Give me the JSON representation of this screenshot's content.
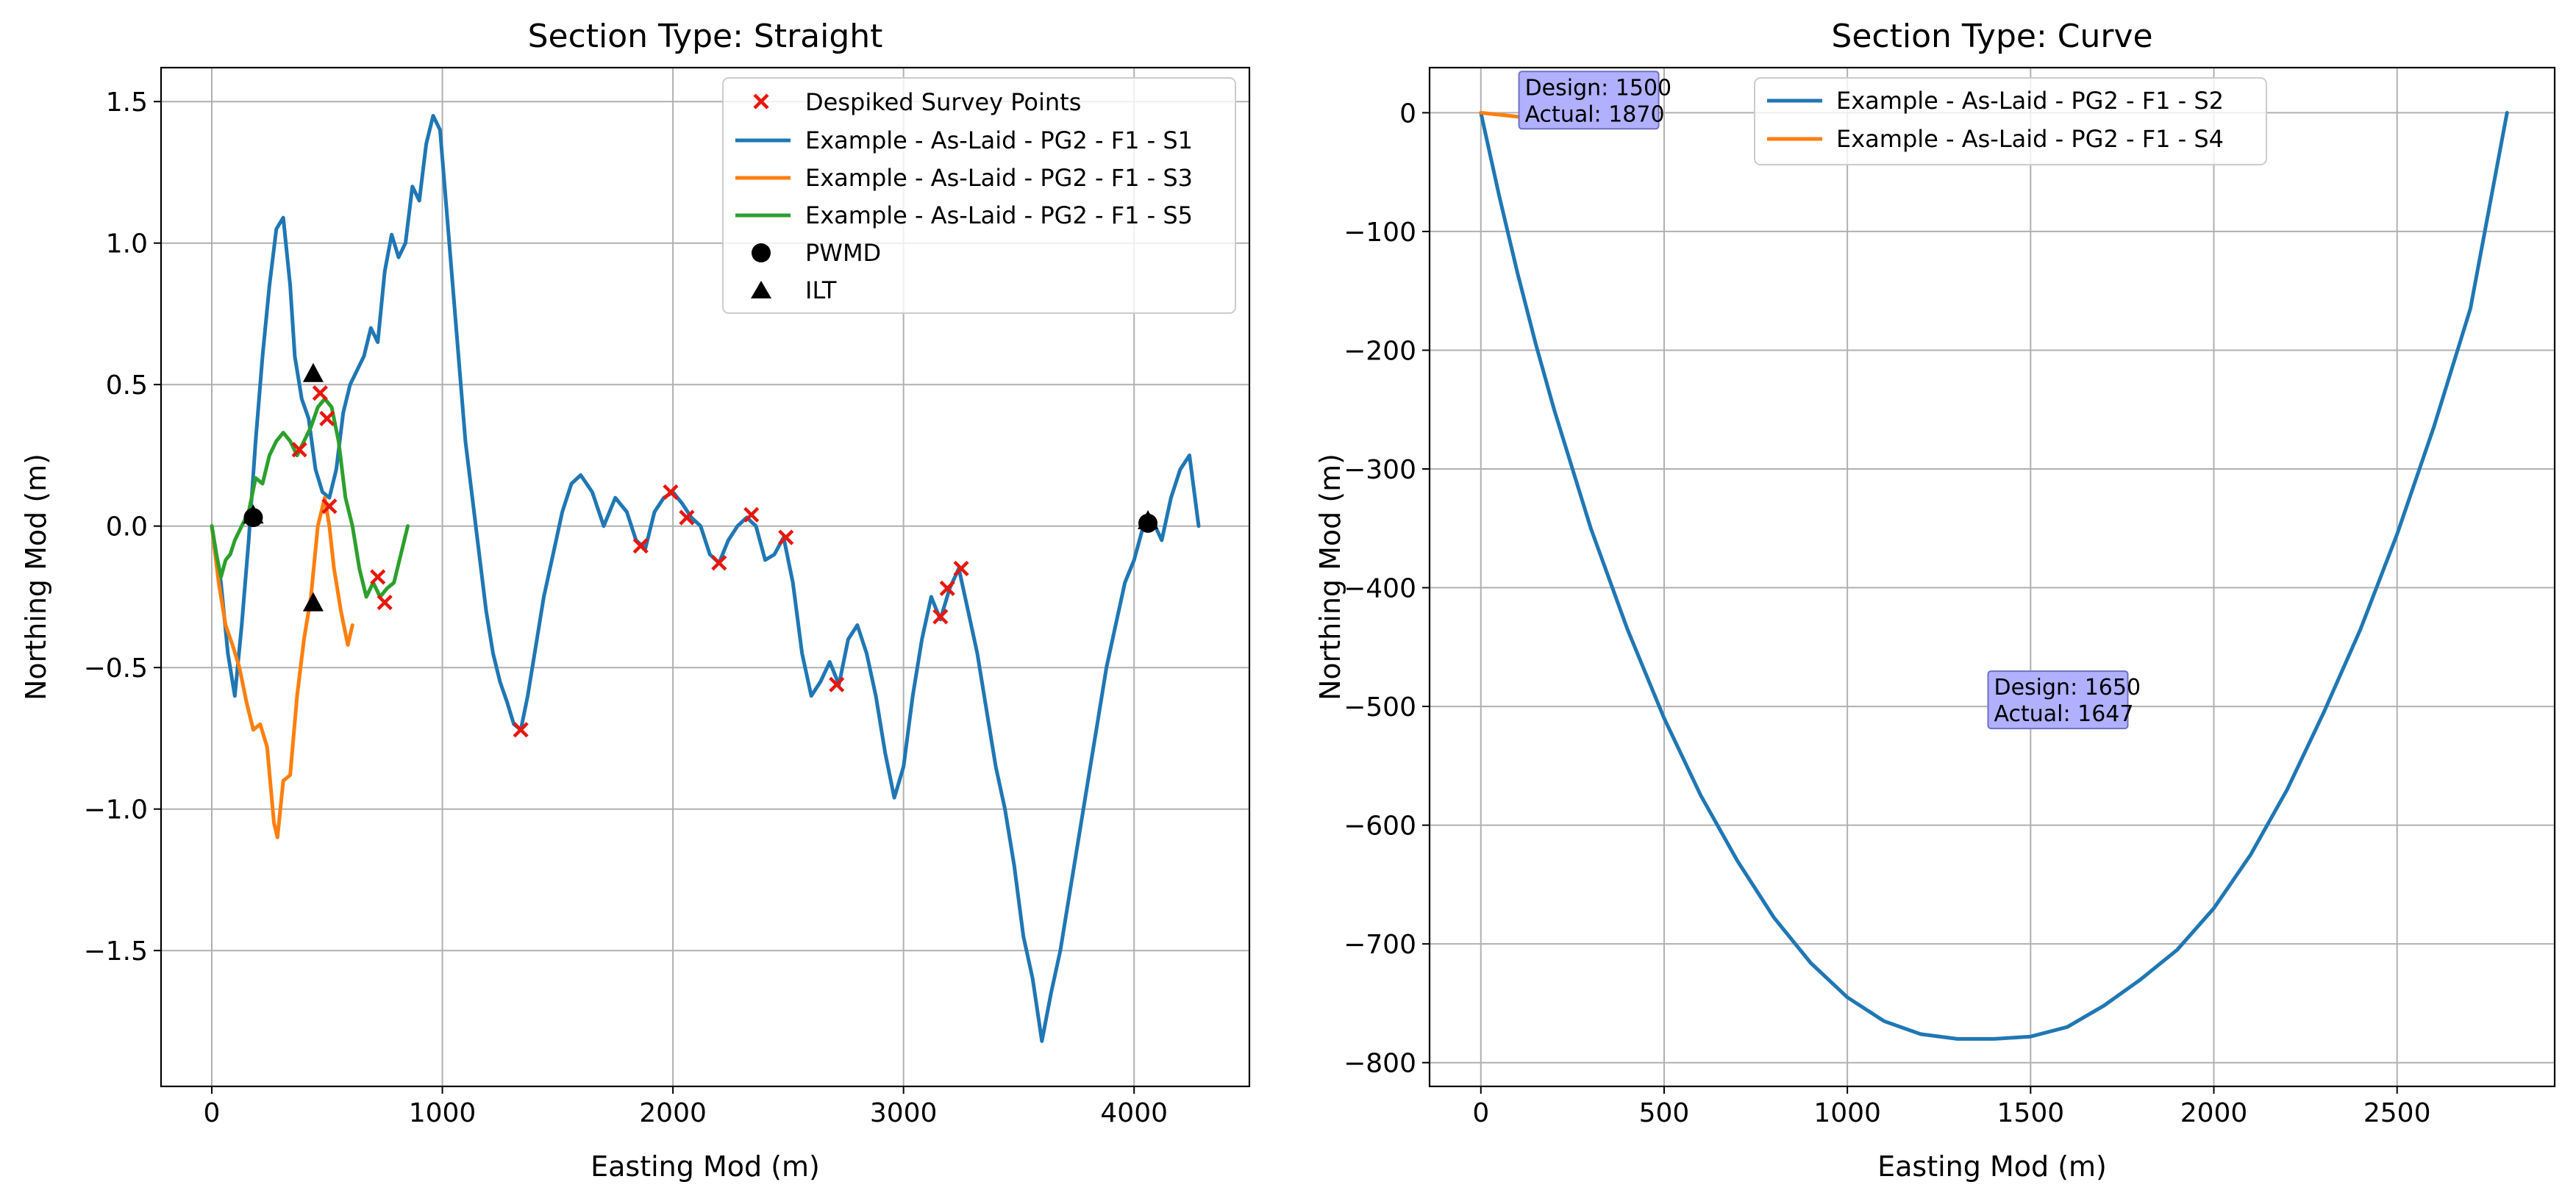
{
  "chart_data": [
    {
      "type": "line",
      "title": "Section Type: Straight",
      "xlabel": "Easting Mod (m)",
      "ylabel": "Northing Mod (m)",
      "xlim": [
        -220,
        4500
      ],
      "ylim": [
        -1.98,
        1.62
      ],
      "xticks": [
        0,
        1000,
        2000,
        3000,
        4000
      ],
      "xtick_labels": [
        "0",
        "1000",
        "2000",
        "3000",
        "4000"
      ],
      "yticks": [
        1.5,
        1.0,
        0.5,
        0.0,
        -0.5,
        -1.0,
        -1.5
      ],
      "ytick_labels": [
        "1.5",
        "1.0",
        "0.5",
        "0.0",
        "−0.5",
        "−1.0",
        "−1.5"
      ],
      "grid": true,
      "legend_position": "top-right",
      "legend": [
        {
          "label": "Despiked Survey Points",
          "kind": "x-marker",
          "color": "#e8170b"
        },
        {
          "label": "Example - As-Laid - PG2 - F1 - S1",
          "kind": "line",
          "color": "#1f77b4"
        },
        {
          "label": "Example - As-Laid - PG2 - F1 - S3",
          "kind": "line",
          "color": "#ff7f0e"
        },
        {
          "label": "Example - As-Laid - PG2 - F1 - S5",
          "kind": "line",
          "color": "#2ca02c"
        },
        {
          "label": "PWMD",
          "kind": "circle-marker",
          "color": "#000000"
        },
        {
          "label": "ILT",
          "kind": "triangle-marker",
          "color": "#000000"
        }
      ],
      "series": [
        {
          "name": "Example - As-Laid - PG2 - F1 - S1",
          "color": "#1f77b4",
          "x": [
            0,
            40,
            70,
            100,
            130,
            160,
            190,
            220,
            250,
            280,
            310,
            340,
            360,
            390,
            420,
            450,
            480,
            510,
            540,
            570,
            600,
            630,
            660,
            690,
            720,
            750,
            780,
            810,
            840,
            870,
            900,
            930,
            960,
            990,
            1010,
            1040,
            1070,
            1100,
            1130,
            1160,
            1190,
            1220,
            1250,
            1280,
            1310,
            1340,
            1370,
            1400,
            1440,
            1480,
            1520,
            1560,
            1600,
            1650,
            1700,
            1750,
            1800,
            1840,
            1880,
            1920,
            1960,
            2000,
            2040,
            2080,
            2120,
            2160,
            2200,
            2240,
            2280,
            2320,
            2360,
            2400,
            2440,
            2480,
            2520,
            2560,
            2600,
            2640,
            2680,
            2720,
            2760,
            2800,
            2840,
            2880,
            2920,
            2960,
            3000,
            3040,
            3080,
            3120,
            3160,
            3200,
            3240,
            3280,
            3320,
            3360,
            3400,
            3440,
            3480,
            3520,
            3560,
            3600,
            3640,
            3680,
            3720,
            3760,
            3800,
            3840,
            3880,
            3920,
            3960,
            4000,
            4040,
            4080,
            4120,
            4160,
            4200,
            4240,
            4280
          ],
          "y": [
            0.0,
            -0.2,
            -0.45,
            -0.6,
            -0.35,
            -0.05,
            0.3,
            0.6,
            0.85,
            1.05,
            1.09,
            0.85,
            0.6,
            0.45,
            0.38,
            0.2,
            0.12,
            0.1,
            0.2,
            0.4,
            0.5,
            0.55,
            0.6,
            0.7,
            0.65,
            0.9,
            1.03,
            0.95,
            1.0,
            1.2,
            1.15,
            1.35,
            1.45,
            1.4,
            1.2,
            0.9,
            0.6,
            0.3,
            0.1,
            -0.1,
            -0.3,
            -0.45,
            -0.55,
            -0.62,
            -0.7,
            -0.72,
            -0.6,
            -0.45,
            -0.25,
            -0.1,
            0.05,
            0.15,
            0.18,
            0.12,
            0.0,
            0.1,
            0.05,
            -0.05,
            -0.08,
            0.05,
            0.1,
            0.12,
            0.08,
            0.03,
            0.0,
            -0.1,
            -0.13,
            -0.05,
            0.0,
            0.03,
            0.0,
            -0.12,
            -0.1,
            -0.04,
            -0.2,
            -0.45,
            -0.6,
            -0.55,
            -0.48,
            -0.56,
            -0.4,
            -0.35,
            -0.45,
            -0.6,
            -0.8,
            -0.96,
            -0.85,
            -0.6,
            -0.4,
            -0.25,
            -0.33,
            -0.22,
            -0.15,
            -0.3,
            -0.45,
            -0.65,
            -0.85,
            -1.0,
            -1.2,
            -1.45,
            -1.6,
            -1.82,
            -1.65,
            -1.5,
            -1.3,
            -1.1,
            -0.9,
            -0.7,
            -0.5,
            -0.35,
            -0.2,
            -0.12,
            0.0,
            0.02,
            -0.05,
            0.1,
            0.2,
            0.25,
            0.0
          ]
        },
        {
          "name": "Example - As-Laid - PG2 - F1 - S3",
          "color": "#ff7f0e",
          "x": [
            0,
            30,
            60,
            90,
            120,
            150,
            180,
            210,
            240,
            270,
            285,
            310,
            340,
            370,
            400,
            430,
            460,
            490,
            510,
            530,
            560,
            590,
            610
          ],
          "y": [
            0.0,
            -0.2,
            -0.35,
            -0.42,
            -0.5,
            -0.62,
            -0.72,
            -0.7,
            -0.78,
            -1.05,
            -1.1,
            -0.9,
            -0.88,
            -0.6,
            -0.4,
            -0.25,
            0.0,
            0.1,
            0.0,
            -0.15,
            -0.3,
            -0.42,
            -0.35
          ]
        },
        {
          "name": "Example - As-Laid - PG2 - F1 - S5",
          "color": "#2ca02c",
          "x": [
            0,
            20,
            40,
            60,
            80,
            100,
            130,
            160,
            190,
            220,
            250,
            280,
            310,
            340,
            370,
            400,
            430,
            460,
            490,
            520,
            550,
            580,
            610,
            640,
            670,
            700,
            730,
            760,
            790,
            820,
            850
          ],
          "y": [
            0.0,
            -0.1,
            -0.18,
            -0.12,
            -0.1,
            -0.05,
            0.0,
            0.05,
            0.17,
            0.15,
            0.25,
            0.3,
            0.33,
            0.3,
            0.25,
            0.3,
            0.35,
            0.42,
            0.45,
            0.42,
            0.3,
            0.1,
            0.0,
            -0.15,
            -0.25,
            -0.2,
            -0.25,
            -0.22,
            -0.2,
            -0.1,
            0.0
          ]
        }
      ],
      "despiked_points": {
        "x": [
          380,
          470,
          500,
          510,
          720,
          750,
          1340,
          1860,
          1990,
          2060,
          2200,
          2340,
          2490,
          2710,
          3160,
          3190,
          3250
        ],
        "y": [
          0.27,
          0.47,
          0.38,
          0.07,
          -0.18,
          -0.27,
          -0.72,
          -0.07,
          0.12,
          0.03,
          -0.13,
          0.04,
          -0.04,
          -0.56,
          -0.32,
          -0.22,
          -0.15
        ]
      },
      "pwmd_points": {
        "x": [
          180,
          4060
        ],
        "y": [
          0.03,
          0.01
        ]
      },
      "ilt_points": {
        "x": [
          440,
          440,
          180,
          4060
        ],
        "y": [
          0.54,
          -0.27,
          0.04,
          0.02
        ]
      }
    },
    {
      "type": "line",
      "title": "Section Type: Curve",
      "xlabel": "Easting Mod (m)",
      "ylabel": "Northing Mod (m)",
      "xlim": [
        -140,
        2930
      ],
      "ylim": [
        -820,
        38
      ],
      "xticks": [
        0,
        500,
        1000,
        1500,
        2000,
        2500
      ],
      "xtick_labels": [
        "0",
        "500",
        "1000",
        "1500",
        "2000",
        "2500"
      ],
      "yticks": [
        0,
        -100,
        -200,
        -300,
        -400,
        -500,
        -600,
        -700,
        -800
      ],
      "ytick_labels": [
        "0",
        "−100",
        "−200",
        "−300",
        "−400",
        "−500",
        "−600",
        "−700",
        "−800"
      ],
      "grid": true,
      "legend_position": "top-center",
      "legend": [
        {
          "label": "Example - As-Laid - PG2 - F1 - S2",
          "kind": "line",
          "color": "#1f77b4"
        },
        {
          "label": "Example - As-Laid - PG2 - F1 - S4",
          "kind": "line",
          "color": "#ff7f0e"
        }
      ],
      "series": [
        {
          "name": "Example - As-Laid - PG2 - F1 - S2",
          "color": "#1f77b4",
          "x": [
            0,
            50,
            100,
            150,
            200,
            300,
            400,
            500,
            600,
            700,
            800,
            900,
            1000,
            1100,
            1200,
            1300,
            1400,
            1500,
            1600,
            1700,
            1800,
            1900,
            2000,
            2100,
            2200,
            2300,
            2400,
            2500,
            2600,
            2700,
            2800
          ],
          "y": [
            0,
            -70,
            -135,
            -195,
            -250,
            -350,
            -435,
            -510,
            -575,
            -630,
            -678,
            -716,
            -745,
            -765,
            -776,
            -780,
            -780,
            -778,
            -770,
            -752,
            -730,
            -705,
            -670,
            -625,
            -570,
            -505,
            -435,
            -355,
            -265,
            -165,
            0
          ]
        },
        {
          "name": "Example - As-Laid - PG2 - F1 - S4",
          "color": "#ff7f0e",
          "x": [
            0,
            60,
            120,
            180
          ],
          "y": [
            0,
            -2,
            -4,
            -3
          ]
        }
      ],
      "annotations": [
        {
          "lines": [
            "Design: 1500",
            "Actual: 1870"
          ],
          "x": 120,
          "y": 31
        },
        {
          "lines": [
            "Design: 1650",
            "Actual: 1647"
          ],
          "x": 1400,
          "y": -474
        }
      ]
    }
  ]
}
